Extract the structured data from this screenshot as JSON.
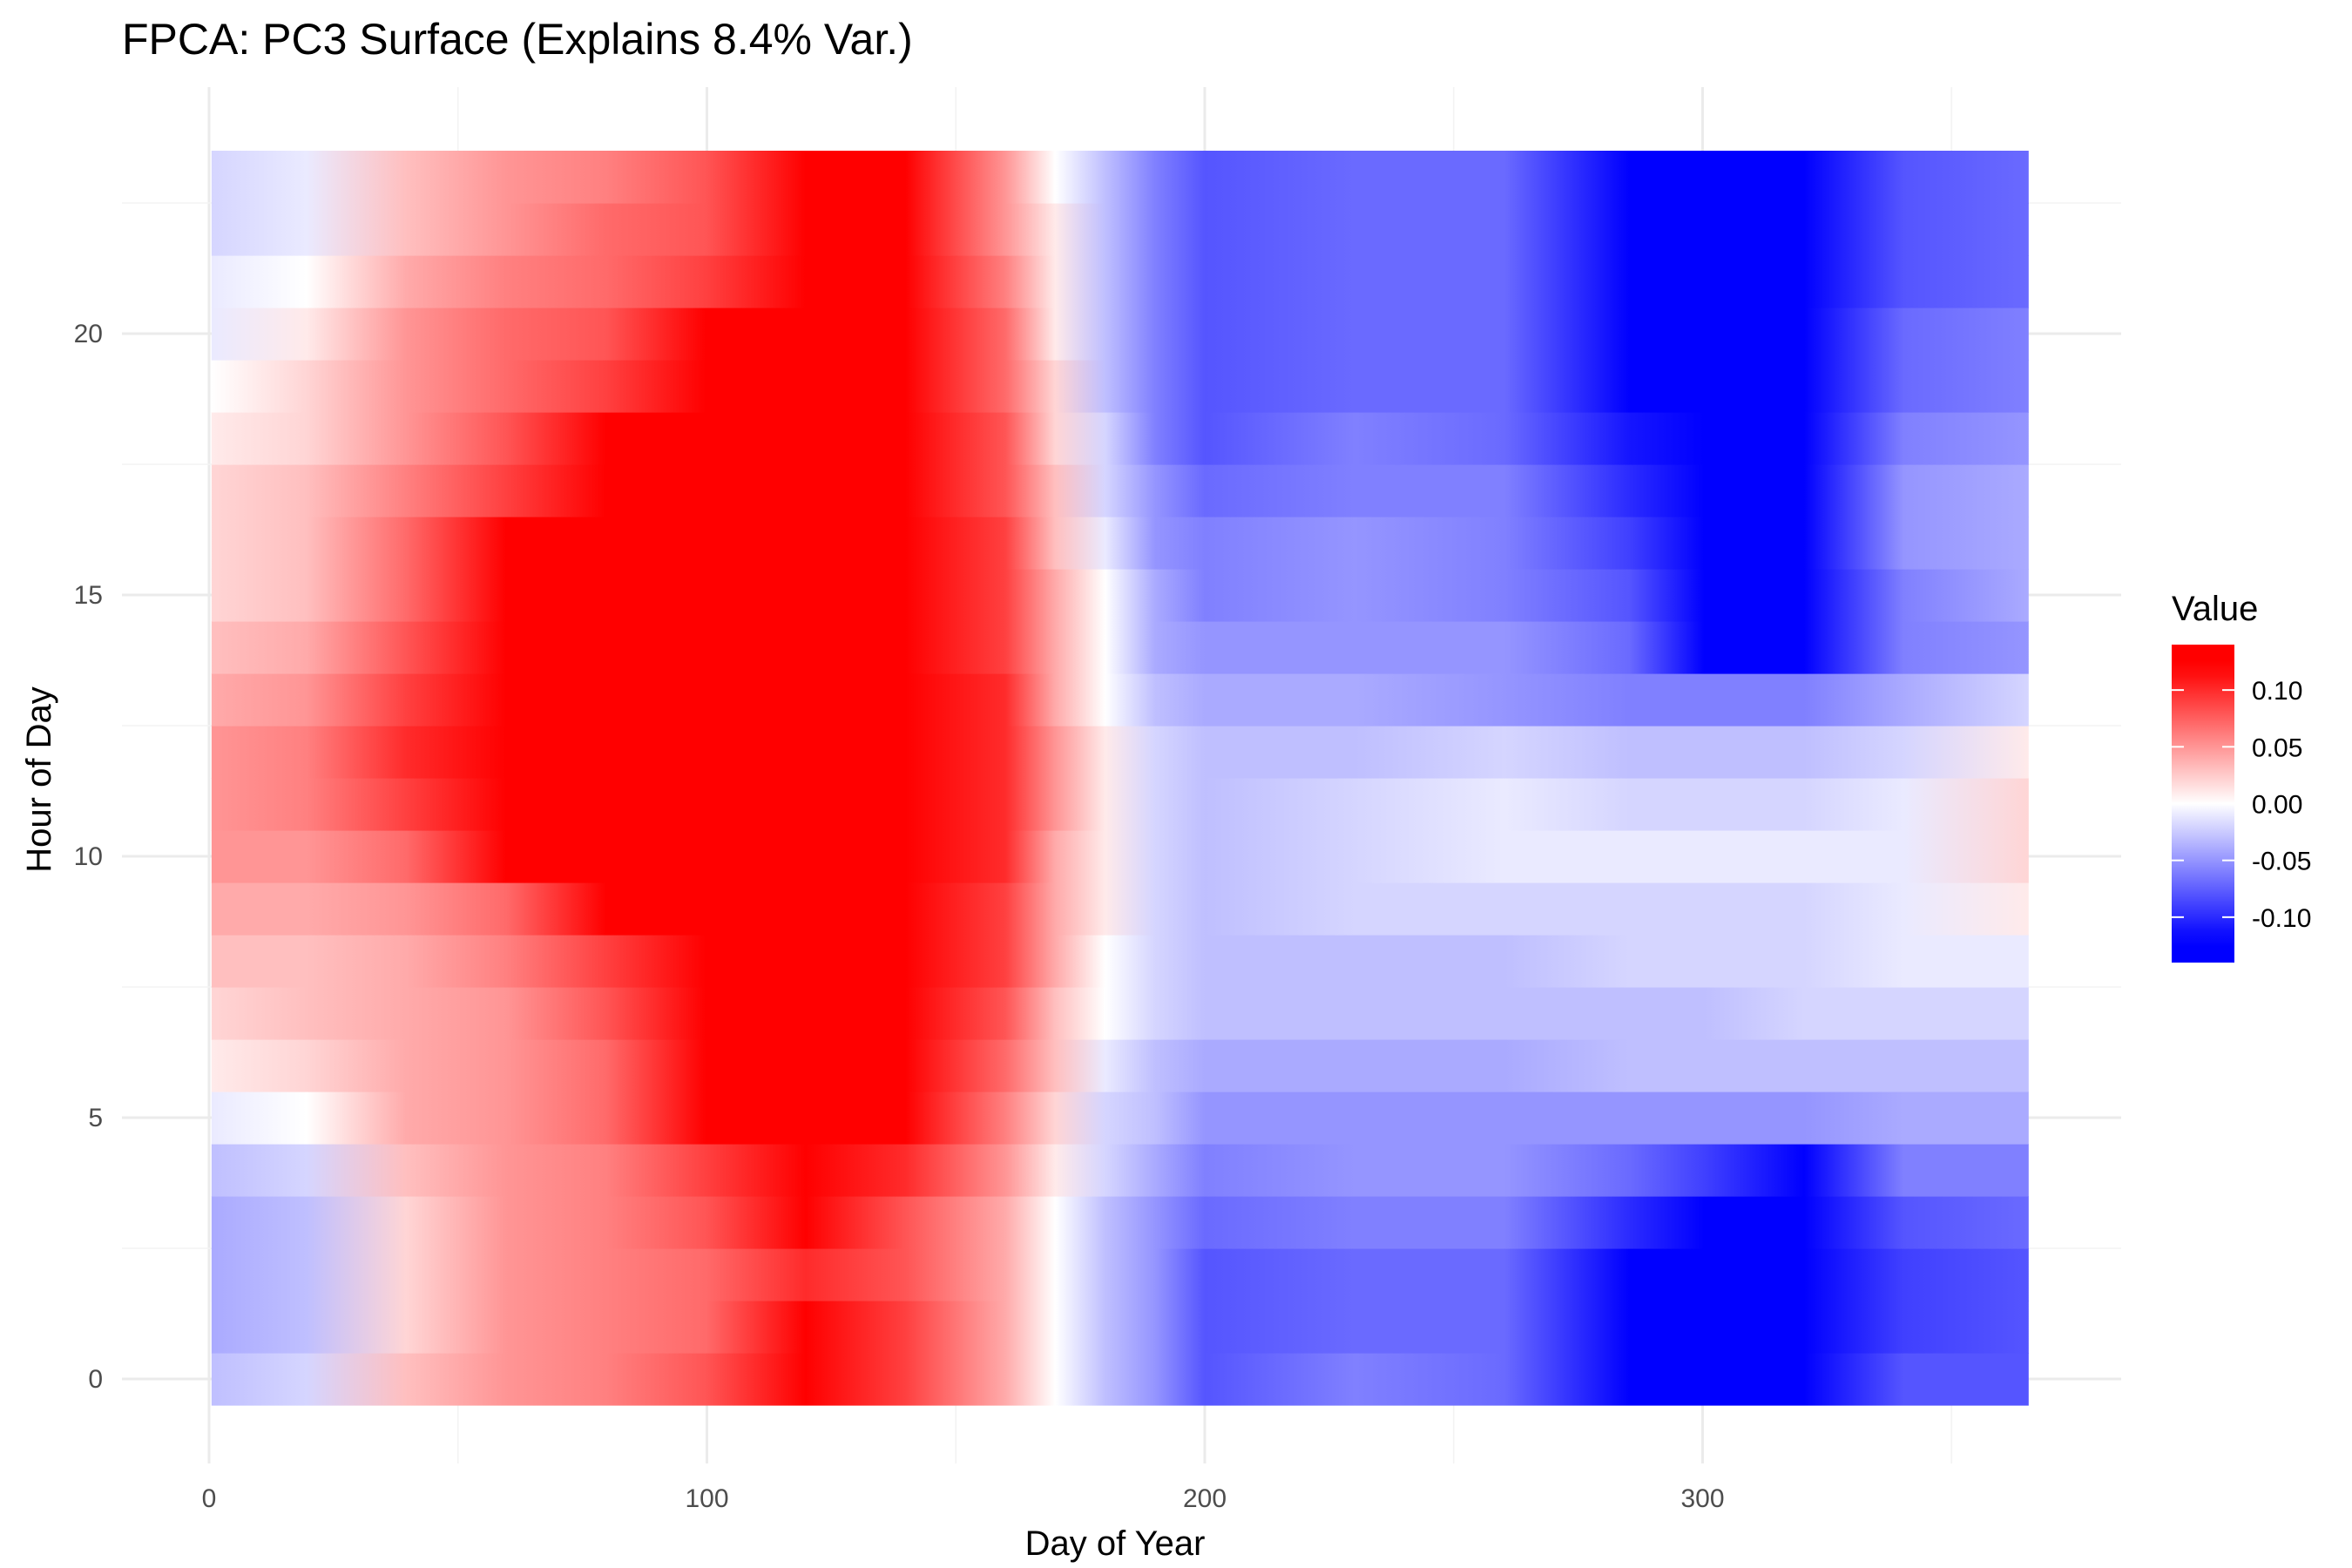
{
  "chart_data": {
    "type": "heatmap",
    "title": "FPCA: PC3 Surface (Explains 8.4% Var.)",
    "xlabel": "Day of Year",
    "ylabel": "Hour of Day",
    "xlim": [
      1,
      365
    ],
    "ylim": [
      0,
      23
    ],
    "x_ticks": [
      0,
      100,
      200,
      300
    ],
    "y_ticks": [
      0,
      5,
      10,
      15,
      20
    ],
    "grid": true,
    "legend": {
      "title": "Value",
      "position": "right",
      "ticks": [
        0.1,
        0.05,
        0.0,
        -0.05,
        -0.1
      ],
      "tick_labels": [
        "0.10",
        "0.05",
        "0.00",
        "-0.05",
        "-0.10"
      ],
      "range": [
        -0.14,
        0.14
      ]
    },
    "color_scale": {
      "low": "#0000ff",
      "mid": "#ffffff",
      "high": "#ff0000",
      "midpoint": 0
    },
    "x_grid": [
      1,
      20,
      40,
      60,
      80,
      100,
      120,
      140,
      160,
      170,
      180,
      190,
      200,
      230,
      260,
      285,
      300,
      320,
      340,
      365
    ],
    "values": [
      [
        -0.03,
        -0.02,
        0.03,
        0.05,
        0.06,
        0.08,
        0.14,
        0.09,
        0.04,
        0.0,
        -0.03,
        -0.05,
        -0.08,
        -0.06,
        -0.07,
        -0.14,
        -0.14,
        -0.14,
        -0.08,
        -0.08
      ],
      [
        -0.04,
        -0.03,
        0.02,
        0.05,
        0.06,
        0.07,
        0.12,
        0.09,
        0.04,
        0.0,
        -0.03,
        -0.05,
        -0.08,
        -0.07,
        -0.07,
        -0.14,
        -0.14,
        -0.14,
        -0.09,
        -0.08
      ],
      [
        -0.04,
        -0.03,
        0.02,
        0.05,
        0.06,
        0.07,
        0.1,
        0.08,
        0.04,
        0.0,
        -0.03,
        -0.05,
        -0.08,
        -0.07,
        -0.07,
        -0.13,
        -0.14,
        -0.13,
        -0.09,
        -0.08
      ],
      [
        -0.04,
        -0.03,
        0.02,
        0.05,
        0.06,
        0.08,
        0.12,
        0.08,
        0.04,
        0.0,
        -0.03,
        -0.05,
        -0.07,
        -0.06,
        -0.06,
        -0.1,
        -0.14,
        -0.14,
        -0.08,
        -0.07
      ],
      [
        -0.03,
        -0.02,
        0.03,
        0.05,
        0.06,
        0.09,
        0.14,
        0.1,
        0.05,
        0.01,
        -0.02,
        -0.04,
        -0.06,
        -0.05,
        -0.05,
        -0.07,
        -0.09,
        -0.12,
        -0.06,
        -0.06
      ],
      [
        -0.01,
        0.0,
        0.04,
        0.05,
        0.07,
        0.12,
        0.14,
        0.12,
        0.06,
        0.02,
        -0.02,
        -0.03,
        -0.05,
        -0.05,
        -0.05,
        -0.05,
        -0.05,
        -0.05,
        -0.04,
        -0.04
      ],
      [
        0.01,
        0.02,
        0.04,
        0.05,
        0.07,
        0.14,
        0.14,
        0.14,
        0.07,
        0.03,
        -0.01,
        -0.03,
        -0.04,
        -0.04,
        -0.04,
        -0.03,
        -0.03,
        -0.03,
        -0.03,
        -0.03
      ],
      [
        0.02,
        0.03,
        0.04,
        0.05,
        0.08,
        0.14,
        0.14,
        0.14,
        0.08,
        0.03,
        0.0,
        -0.02,
        -0.03,
        -0.03,
        -0.03,
        -0.03,
        -0.03,
        -0.02,
        -0.02,
        -0.02
      ],
      [
        0.03,
        0.03,
        0.04,
        0.06,
        0.09,
        0.14,
        0.14,
        0.14,
        0.09,
        0.04,
        0.0,
        -0.02,
        -0.03,
        -0.03,
        -0.03,
        -0.02,
        -0.02,
        -0.02,
        -0.01,
        -0.01
      ],
      [
        0.04,
        0.04,
        0.05,
        0.07,
        0.14,
        0.14,
        0.14,
        0.14,
        0.09,
        0.04,
        0.01,
        -0.02,
        -0.03,
        -0.02,
        -0.02,
        -0.02,
        -0.02,
        -0.02,
        -0.01,
        0.01
      ],
      [
        0.05,
        0.05,
        0.07,
        0.14,
        0.14,
        0.14,
        0.14,
        0.14,
        0.1,
        0.04,
        0.01,
        -0.02,
        -0.03,
        -0.02,
        -0.01,
        -0.01,
        -0.01,
        -0.01,
        -0.01,
        0.02
      ],
      [
        0.05,
        0.06,
        0.09,
        0.14,
        0.14,
        0.14,
        0.14,
        0.14,
        0.1,
        0.05,
        0.01,
        -0.02,
        -0.03,
        -0.02,
        -0.01,
        -0.02,
        -0.02,
        -0.02,
        -0.01,
        0.02
      ],
      [
        0.05,
        0.06,
        0.1,
        0.14,
        0.14,
        0.14,
        0.14,
        0.14,
        0.1,
        0.05,
        0.01,
        -0.02,
        -0.03,
        -0.03,
        -0.02,
        -0.03,
        -0.03,
        -0.03,
        -0.02,
        0.01
      ],
      [
        0.04,
        0.05,
        0.09,
        0.14,
        0.14,
        0.14,
        0.14,
        0.14,
        0.1,
        0.04,
        0.0,
        -0.03,
        -0.04,
        -0.04,
        -0.05,
        -0.06,
        -0.06,
        -0.06,
        -0.04,
        -0.02
      ],
      [
        0.03,
        0.04,
        0.08,
        0.14,
        0.14,
        0.14,
        0.14,
        0.14,
        0.09,
        0.04,
        0.0,
        -0.04,
        -0.05,
        -0.05,
        -0.05,
        -0.07,
        -0.14,
        -0.14,
        -0.06,
        -0.05
      ],
      [
        0.02,
        0.03,
        0.07,
        0.14,
        0.14,
        0.14,
        0.14,
        0.14,
        0.09,
        0.04,
        0.0,
        -0.04,
        -0.06,
        -0.05,
        -0.06,
        -0.08,
        -0.14,
        -0.14,
        -0.06,
        -0.04
      ],
      [
        0.02,
        0.03,
        0.07,
        0.14,
        0.14,
        0.14,
        0.14,
        0.14,
        0.09,
        0.03,
        -0.01,
        -0.05,
        -0.06,
        -0.05,
        -0.06,
        -0.09,
        -0.14,
        -0.14,
        -0.05,
        -0.04
      ],
      [
        0.02,
        0.03,
        0.06,
        0.09,
        0.14,
        0.14,
        0.14,
        0.14,
        0.08,
        0.03,
        -0.02,
        -0.05,
        -0.07,
        -0.06,
        -0.06,
        -0.1,
        -0.14,
        -0.14,
        -0.05,
        -0.04
      ],
      [
        0.01,
        0.02,
        0.05,
        0.08,
        0.14,
        0.14,
        0.14,
        0.14,
        0.08,
        0.02,
        -0.02,
        -0.06,
        -0.08,
        -0.06,
        -0.07,
        -0.11,
        -0.14,
        -0.14,
        -0.06,
        -0.05
      ],
      [
        0.0,
        0.02,
        0.05,
        0.07,
        0.09,
        0.14,
        0.14,
        0.14,
        0.07,
        0.02,
        -0.03,
        -0.06,
        -0.08,
        -0.07,
        -0.07,
        -0.12,
        -0.14,
        -0.14,
        -0.07,
        -0.06
      ],
      [
        -0.01,
        0.01,
        0.05,
        0.07,
        0.08,
        0.14,
        0.14,
        0.14,
        0.07,
        0.01,
        -0.03,
        -0.06,
        -0.08,
        -0.07,
        -0.07,
        -0.14,
        -0.14,
        -0.14,
        -0.07,
        -0.06
      ],
      [
        -0.01,
        0.0,
        0.04,
        0.06,
        0.07,
        0.09,
        0.14,
        0.14,
        0.06,
        0.01,
        -0.03,
        -0.06,
        -0.08,
        -0.07,
        -0.07,
        -0.14,
        -0.14,
        -0.14,
        -0.08,
        -0.07
      ],
      [
        -0.02,
        -0.01,
        0.03,
        0.05,
        0.07,
        0.08,
        0.14,
        0.14,
        0.05,
        0.01,
        -0.03,
        -0.06,
        -0.08,
        -0.07,
        -0.07,
        -0.14,
        -0.14,
        -0.14,
        -0.08,
        -0.07
      ],
      [
        -0.02,
        -0.01,
        0.03,
        0.05,
        0.06,
        0.08,
        0.14,
        0.14,
        0.05,
        0.0,
        -0.03,
        -0.06,
        -0.08,
        -0.07,
        -0.07,
        -0.14,
        -0.14,
        -0.14,
        -0.08,
        -0.07
      ]
    ]
  }
}
